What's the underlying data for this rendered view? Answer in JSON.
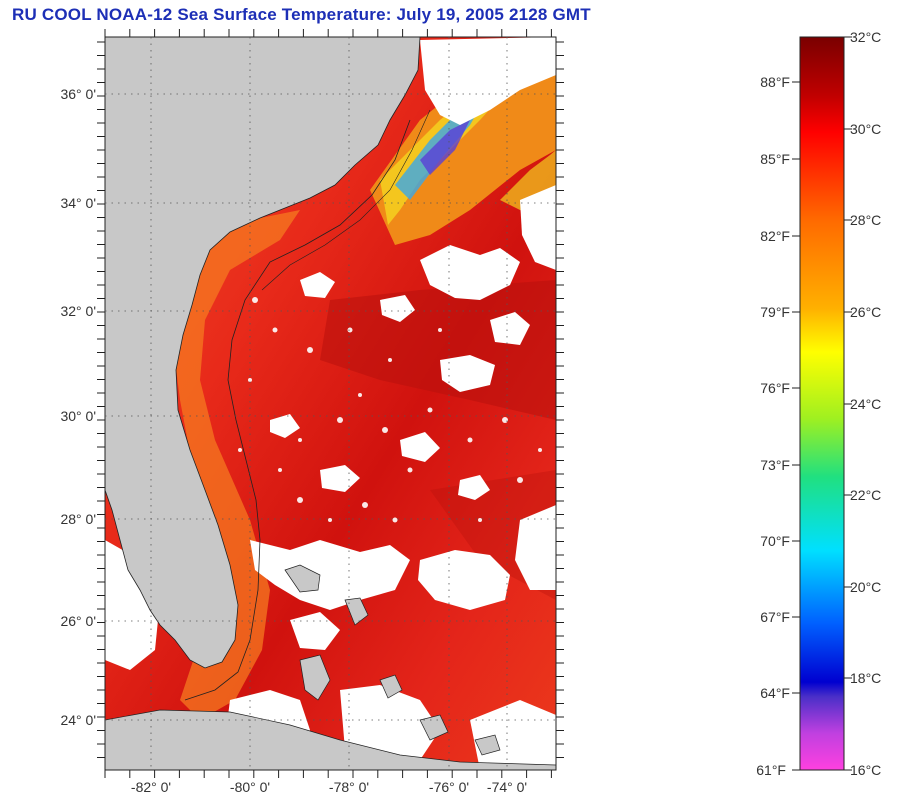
{
  "title": "RU COOL  NOAA-12  Sea Surface Temperature:  July 19, 2005 2128 GMT",
  "map": {
    "lat_labels": [
      "36° 0'",
      "34° 0'",
      "32° 0'",
      "30° 0'",
      "28° 0'",
      "26° 0'",
      "24° 0'"
    ],
    "lon_labels": [
      "-82° 0'",
      "-80° 0'",
      "-78° 0'",
      "-76° 0'",
      "-74° 0'"
    ],
    "land_color": "#c8c8c8",
    "cloud_color": "#ffffff",
    "ocean_warm_color": "#e8201a"
  },
  "colorbar": {
    "celsius_labels": [
      "32°C",
      "30°C",
      "28°C",
      "26°C",
      "24°C",
      "22°C",
      "20°C",
      "18°C",
      "16°C"
    ],
    "fahrenheit_labels": [
      "88°F",
      "85°F",
      "82°F",
      "79°F",
      "76°F",
      "73°F",
      "70°F",
      "67°F",
      "64°F",
      "61°F"
    ],
    "range_c": [
      16,
      32
    ],
    "range_f": [
      61,
      88
    ]
  }
}
